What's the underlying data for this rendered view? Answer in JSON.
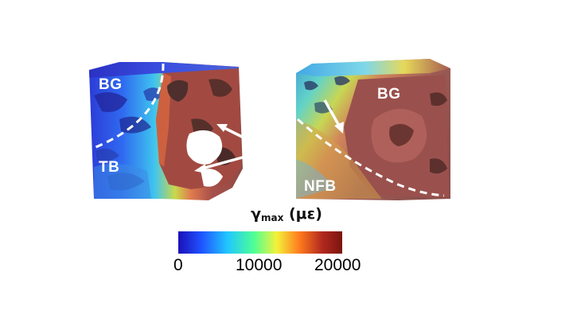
{
  "left_panel": {
    "labels": {
      "top": "BG",
      "bottom": "TB"
    }
  },
  "right_panel": {
    "labels": {
      "top": "BG",
      "bottom": "NFB"
    }
  },
  "colorbar": {
    "symbol": "γ",
    "subscript": "max",
    "unit": "(με)",
    "ticks": [
      "0",
      "10000",
      "20000"
    ],
    "min": 0,
    "mid": 10000,
    "max": 20000,
    "colormap": [
      "#1b0fb8",
      "#1f52ff",
      "#21c6ff",
      "#4dff96",
      "#f3f23a",
      "#ff7a1e",
      "#b0281e",
      "#7a1410"
    ]
  }
}
